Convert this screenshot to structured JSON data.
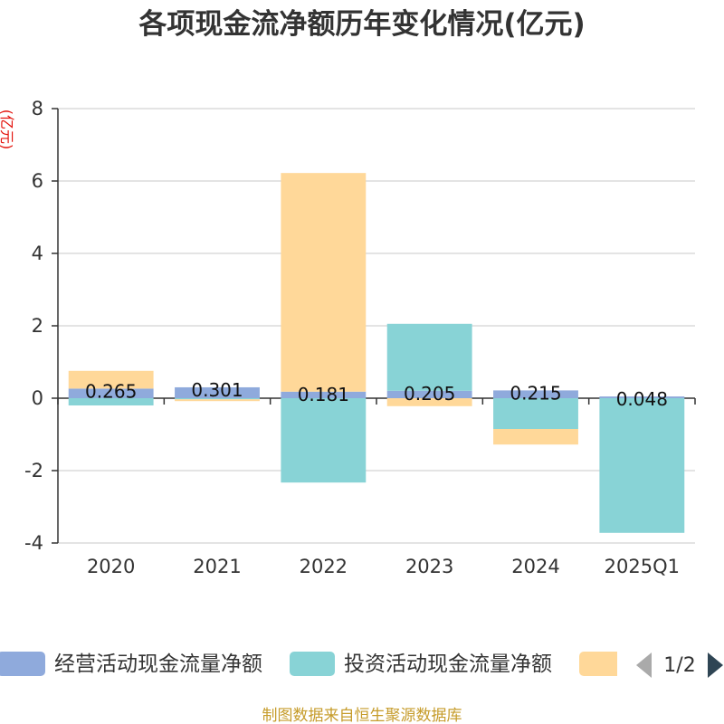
{
  "chart_data": {
    "type": "bar",
    "stacked": true,
    "title": "各项现金流净额历年变化情况(亿元)",
    "ylabel": "(亿元)",
    "xlabel": "",
    "categories": [
      "2020",
      "2021",
      "2022",
      "2023",
      "2024",
      "2025Q1"
    ],
    "ylim": [
      -4,
      8
    ],
    "yticks": [
      -4,
      -2,
      0,
      2,
      4,
      6,
      8
    ],
    "grid": true,
    "series": [
      {
        "name": "经营活动现金流量净额",
        "color": "#8FAADC",
        "values": [
          0.265,
          0.301,
          0.181,
          0.205,
          0.215,
          0.048
        ],
        "show_labels": true
      },
      {
        "name": "投资活动现金流量净额",
        "color": "#88D3D6",
        "values": [
          -0.2,
          -0.03,
          -2.33,
          1.85,
          -0.85,
          -3.72
        ],
        "show_labels": false
      },
      {
        "color": "#FFD899",
        "values": [
          0.49,
          -0.05,
          6.04,
          -0.22,
          -0.43,
          0
        ],
        "show_labels": false
      }
    ],
    "legend": {
      "position": "bottom",
      "page": "1/2"
    }
  },
  "source_note": "制图数据来自恒生聚源数据库",
  "colors": {
    "title": "#333333",
    "axis_title": "#E3120B",
    "source_note": "#C69C2B",
    "pager_prev": "#AAAAAA",
    "pager_next": "#2F4554"
  }
}
